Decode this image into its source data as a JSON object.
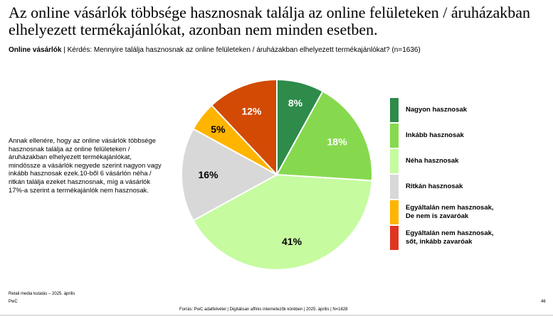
{
  "title": "Az online vásárlók többsége hasznosnak találja az online felületeken / áruházakban elhelyezett termékajánlókat, azonban nem minden esetben.",
  "subtitle_bold": "Online vásárlók",
  "subtitle_rest": " | Kérdés: Mennyire találja hasznosnak az online felületeken / áruházakban elhelyezett termékajánlókat? (n=1636)",
  "note": "Annak ellenére, hogy az online vásárlók többsége hasznosnak találja az online felületeken / áruházakban elhelyezett termékajánlókat, mindössze a vásárlók negyede szerint nagyon vagy inkább hasznosak ezek.10-ből 6 vásárlón néha / ritkán találja ezeket hasznosnak, míg a vásárlók 17%-a szerint a termékajánlók nem hasznosak.",
  "chart_data": {
    "type": "pie",
    "categories": [
      "Nagyon hasznosak",
      "Inkább hasznosak",
      "Néha hasznosak",
      "Ritkán hasznosak",
      "Egyáltalán nem hasznosak, De nem is zavaróak",
      "Egyáltalán nem hasznosak, sőt, inkább zavaróak"
    ],
    "values": [
      8,
      18,
      41,
      16,
      5,
      12
    ],
    "labels": [
      "8%",
      "18%",
      "41%",
      "16%",
      "5%",
      "12%"
    ],
    "colors": [
      "#2e8b4a",
      "#86d94e",
      "#c6fba0",
      "#d8d8d8",
      "#ffb400",
      "#d24a04"
    ],
    "legend_colors": [
      "#2e8b4a",
      "#86d94e",
      "#c6fba0",
      "#d8d8d8",
      "#ffb400",
      "#e03522"
    ],
    "label_colors": [
      "#fff",
      "#fff",
      "#000",
      "#000",
      "#000",
      "#fff"
    ],
    "legend": "right"
  },
  "footer": {
    "left1": "Retail media kutatás – 2025. április",
    "left2": "PwC",
    "page": "46",
    "source": "Forrás: PwC adatfelvétel | Digitálisan affinis internetezők körében | 2025. április |  N=1828"
  }
}
